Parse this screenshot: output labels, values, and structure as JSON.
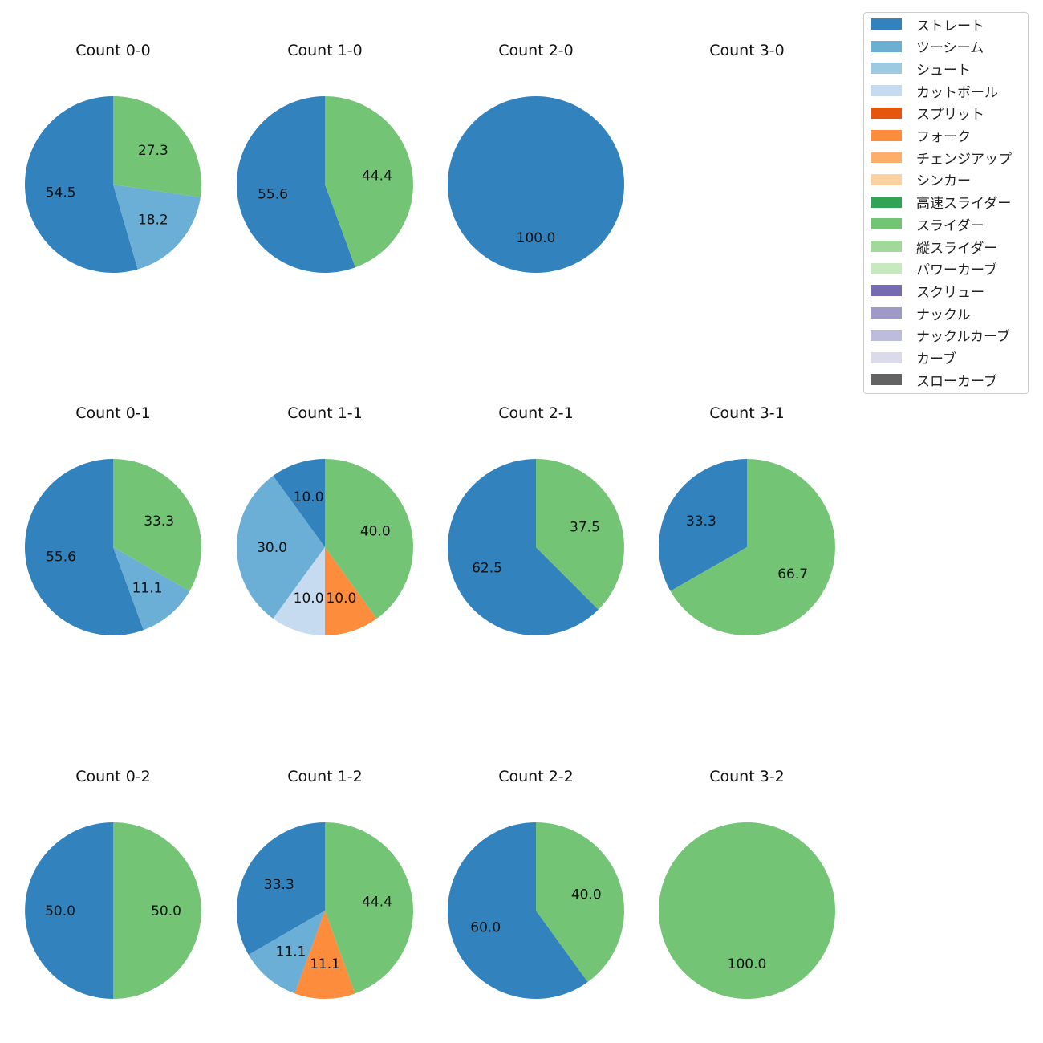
{
  "chart_data": {
    "type": "pie",
    "legend_location": "top-right",
    "colors": {
      "ストレート": "#3182bd",
      "ツーシーム": "#6baed6",
      "シュート": "#9ecae1",
      "カットボール": "#c6dbef",
      "スプリット": "#e6550d",
      "フォーク": "#fd8d3c",
      "チェンジアップ": "#fdae6b",
      "シンカー": "#fdd0a2",
      "高速スライダー": "#31a354",
      "スライダー": "#74c476",
      "縦スライダー": "#a1d99b",
      "パワーカーブ": "#c7e9c0",
      "スクリュー": "#756bb1",
      "ナックル": "#9e9ac8",
      "ナックルカーブ": "#bcbddc",
      "カーブ": "#dadaeb",
      "スローカーブ": "#636363"
    },
    "legend": [
      "ストレート",
      "ツーシーム",
      "シュート",
      "カットボール",
      "スプリット",
      "フォーク",
      "チェンジアップ",
      "シンカー",
      "高速スライダー",
      "スライダー",
      "縦スライダー",
      "パワーカーブ",
      "スクリュー",
      "ナックル",
      "ナックルカーブ",
      "カーブ",
      "スローカーブ"
    ],
    "charts": [
      {
        "title": "Count 0-0",
        "slices": [
          {
            "label": "ストレート",
            "value": 54.5
          },
          {
            "label": "ツーシーム",
            "value": 18.2
          },
          {
            "label": "スライダー",
            "value": 27.3
          }
        ]
      },
      {
        "title": "Count 1-0",
        "slices": [
          {
            "label": "ストレート",
            "value": 55.6
          },
          {
            "label": "スライダー",
            "value": 44.4
          }
        ]
      },
      {
        "title": "Count 2-0",
        "slices": [
          {
            "label": "ストレート",
            "value": 100.0
          }
        ]
      },
      {
        "title": "Count 3-0",
        "slices": []
      },
      {
        "title": "Count 0-1",
        "slices": [
          {
            "label": "ストレート",
            "value": 55.6
          },
          {
            "label": "ツーシーム",
            "value": 11.1
          },
          {
            "label": "スライダー",
            "value": 33.3
          }
        ]
      },
      {
        "title": "Count 1-1",
        "slices": [
          {
            "label": "ストレート",
            "value": 10.0
          },
          {
            "label": "ツーシーム",
            "value": 30.0
          },
          {
            "label": "カットボール",
            "value": 10.0
          },
          {
            "label": "フォーク",
            "value": 10.0
          },
          {
            "label": "スライダー",
            "value": 40.0
          }
        ]
      },
      {
        "title": "Count 2-1",
        "slices": [
          {
            "label": "ストレート",
            "value": 62.5
          },
          {
            "label": "スライダー",
            "value": 37.5
          }
        ]
      },
      {
        "title": "Count 3-1",
        "slices": [
          {
            "label": "ストレート",
            "value": 33.3
          },
          {
            "label": "スライダー",
            "value": 66.7
          }
        ]
      },
      {
        "title": "Count 0-2",
        "slices": [
          {
            "label": "ストレート",
            "value": 50.0
          },
          {
            "label": "スライダー",
            "value": 50.0
          }
        ]
      },
      {
        "title": "Count 1-2",
        "slices": [
          {
            "label": "ストレート",
            "value": 33.3
          },
          {
            "label": "ツーシーム",
            "value": 11.1
          },
          {
            "label": "フォーク",
            "value": 11.1
          },
          {
            "label": "スライダー",
            "value": 44.4
          }
        ]
      },
      {
        "title": "Count 2-2",
        "slices": [
          {
            "label": "ストレート",
            "value": 60.0
          },
          {
            "label": "スライダー",
            "value": 40.0
          }
        ]
      },
      {
        "title": "Count 3-2",
        "slices": [
          {
            "label": "スライダー",
            "value": 100.0
          }
        ]
      }
    ]
  }
}
